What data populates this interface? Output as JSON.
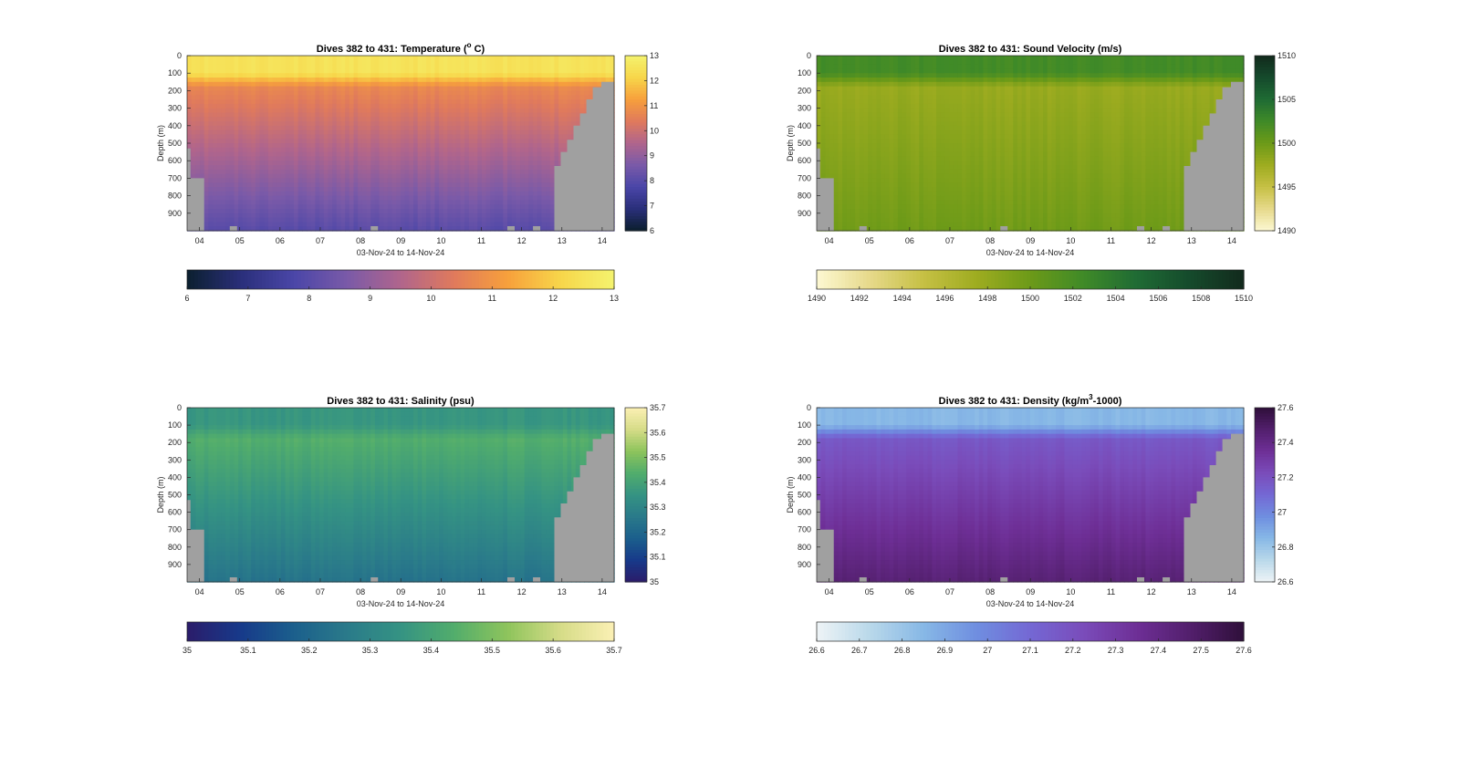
{
  "chart_data": [
    {
      "type": "heatmap",
      "title": "Dives 382 to 431: Temperature (",
      "title_sup": "o",
      "title_tail": " C)",
      "xlabel": "03-Nov-24 to 14-Nov-24",
      "ylabel": "Depth (m)",
      "x_ticks": [
        "04",
        "05",
        "06",
        "07",
        "08",
        "09",
        "10",
        "11",
        "12",
        "13",
        "14"
      ],
      "y_ticks": [
        "0",
        "100",
        "200",
        "300",
        "400",
        "500",
        "600",
        "700",
        "800",
        "900"
      ],
      "ylim": [
        0,
        1000
      ],
      "y_reversed": true,
      "clim": [
        6,
        13
      ],
      "colorbar_ticks": [
        "6",
        "7",
        "8",
        "9",
        "10",
        "11",
        "12",
        "13"
      ],
      "h_colorbar_ticks": [
        "6",
        "7",
        "8",
        "9",
        "10",
        "11",
        "12",
        "13"
      ],
      "colormap": [
        "#0b1f2e",
        "#2a2f7a",
        "#4a46a8",
        "#7a5aa8",
        "#b0658c",
        "#e07a5c",
        "#f7a03c",
        "#f7d64a",
        "#f4f36e"
      ],
      "profile": {
        "surface": 12.5,
        "thermocline": 10.7,
        "deep": 8.0
      },
      "missing_color": "#a0a0a0"
    },
    {
      "type": "heatmap",
      "title": "Dives 382 to 431: Sound Velocity (m/s)",
      "xlabel": "03-Nov-24 to 14-Nov-24",
      "ylabel": "Depth (m)",
      "x_ticks": [
        "04",
        "05",
        "06",
        "07",
        "08",
        "09",
        "10",
        "11",
        "12",
        "13",
        "14"
      ],
      "y_ticks": [
        "0",
        "100",
        "200",
        "300",
        "400",
        "500",
        "600",
        "700",
        "800",
        "900"
      ],
      "ylim": [
        0,
        1000
      ],
      "y_reversed": true,
      "clim": [
        1490,
        1510
      ],
      "colorbar_ticks": [
        "1490",
        "1495",
        "1500",
        "1505",
        "1510"
      ],
      "h_colorbar_ticks": [
        "1490",
        "1492",
        "1494",
        "1496",
        "1498",
        "1500",
        "1502",
        "1504",
        "1506",
        "1508",
        "1510"
      ],
      "colormap": [
        "#fdf8d2",
        "#e6d98a",
        "#c6c044",
        "#9eac20",
        "#6c9a18",
        "#3f8a28",
        "#1f6b34",
        "#154a2c",
        "#122a1c"
      ],
      "profile": {
        "surface": 1502.3,
        "thermocline": 1497.8,
        "deep": 1499.8
      },
      "missing_color": "#a0a0a0"
    },
    {
      "type": "heatmap",
      "title": "Dives 382 to 431: Salinity (psu)",
      "xlabel": "03-Nov-24 to 14-Nov-24",
      "ylabel": "Depth (m)",
      "x_ticks": [
        "04",
        "05",
        "06",
        "07",
        "08",
        "09",
        "10",
        "11",
        "12",
        "13",
        "14"
      ],
      "y_ticks": [
        "0",
        "100",
        "200",
        "300",
        "400",
        "500",
        "600",
        "700",
        "800",
        "900"
      ],
      "ylim": [
        0,
        1000
      ],
      "y_reversed": true,
      "clim": [
        35,
        35.7
      ],
      "colorbar_ticks": [
        "35",
        "35.1",
        "35.2",
        "35.3",
        "35.4",
        "35.5",
        "35.6",
        "35.7"
      ],
      "h_colorbar_ticks": [
        "35",
        "35.1",
        "35.2",
        "35.3",
        "35.4",
        "35.5",
        "35.6",
        "35.7"
      ],
      "colormap": [
        "#2b1c6a",
        "#173a8a",
        "#1b5f8c",
        "#2a7a8a",
        "#359383",
        "#52ad6c",
        "#8ec45c",
        "#d6dc88",
        "#fbf0b4"
      ],
      "profile": {
        "surface": 35.36,
        "thermocline": 35.44,
        "deep": 35.24
      },
      "missing_color": "#a0a0a0"
    },
    {
      "type": "heatmap",
      "title": "Dives 382 to 431: Density (kg/m",
      "title_sup": "3",
      "title_tail": "-1000)",
      "xlabel": "03-Nov-24 to 14-Nov-24",
      "ylabel": "Depth (m)",
      "x_ticks": [
        "04",
        "05",
        "06",
        "07",
        "08",
        "09",
        "10",
        "11",
        "12",
        "13",
        "14"
      ],
      "y_ticks": [
        "0",
        "100",
        "200",
        "300",
        "400",
        "500",
        "600",
        "700",
        "800",
        "900"
      ],
      "ylim": [
        0,
        1000
      ],
      "y_reversed": true,
      "clim": [
        26.6,
        27.6
      ],
      "colorbar_ticks": [
        "26.6",
        "26.8",
        "27",
        "27.2",
        "27.4",
        "27.6"
      ],
      "h_colorbar_ticks": [
        "26.6",
        "26.7",
        "26.8",
        "26.9",
        "27",
        "27.1",
        "27.2",
        "27.3",
        "27.4",
        "27.5",
        "27.6"
      ],
      "colormap": [
        "#eef4f6",
        "#b9d8ea",
        "#87b8e6",
        "#6f8ee0",
        "#7468d4",
        "#7a4cba",
        "#6e2f96",
        "#521f6c",
        "#2f0f3a"
      ],
      "profile": {
        "surface": 26.85,
        "thermocline": 27.17,
        "deep": 27.45
      },
      "missing_color": "#a0a0a0"
    }
  ]
}
